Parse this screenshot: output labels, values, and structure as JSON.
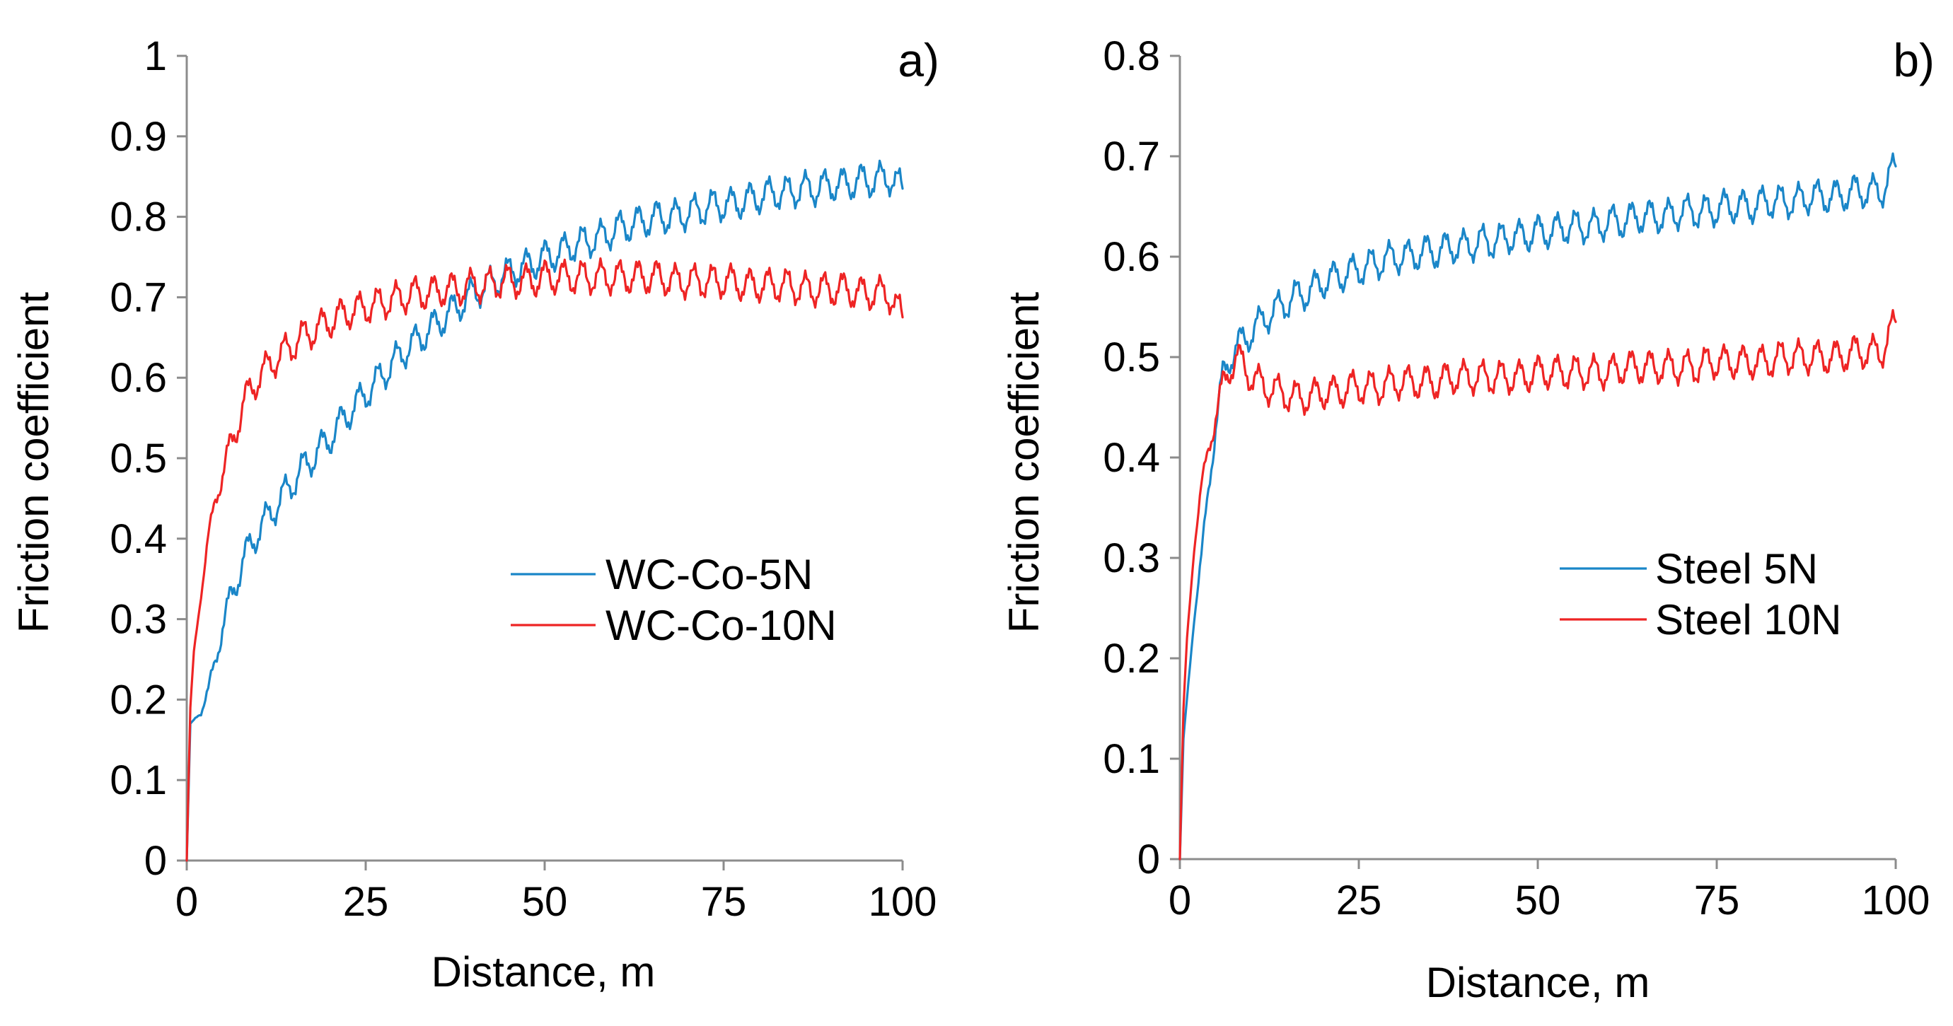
{
  "colors": {
    "series_blue": "#1a86c8",
    "series_red": "#ee2424",
    "axis": "#8c8c8c"
  },
  "chart_data": [
    {
      "type": "line",
      "panel_label": "a)",
      "xlabel": "Distance, m",
      "ylabel": "Friction coefficient",
      "xlim": [
        0,
        100
      ],
      "ylim": [
        0,
        1
      ],
      "x_ticks": [
        0,
        25,
        50,
        75,
        100
      ],
      "x_tick_labels": [
        "0",
        "25",
        "50",
        "75",
        "100"
      ],
      "y_ticks": [
        0,
        0.1,
        0.2,
        0.3,
        0.4,
        0.5,
        0.6,
        0.7,
        0.8,
        0.9,
        1
      ],
      "y_tick_labels": [
        "0",
        "0.1",
        "0.2",
        "0.3",
        "0.4",
        "0.5",
        "0.6",
        "0.7",
        "0.8",
        "0.9",
        "1"
      ],
      "grid": false,
      "legend_position": "center-right",
      "series": [
        {
          "name": "WC-Co-5N",
          "color": "#1a86c8",
          "x": [
            0,
            0.5,
            1,
            2,
            3,
            4,
            5,
            6,
            7,
            8,
            10,
            12,
            14,
            16,
            18,
            20,
            22,
            24,
            26,
            28,
            30,
            32,
            34,
            36,
            38,
            40,
            42,
            44,
            46,
            48,
            50,
            52,
            54,
            56,
            58,
            60,
            62,
            64,
            66,
            68,
            70,
            72,
            74,
            76,
            78,
            80,
            82,
            84,
            86,
            88,
            90,
            92,
            94,
            96,
            98,
            100
          ],
          "y": [
            0,
            0.17,
            0.175,
            0.185,
            0.21,
            0.25,
            0.29,
            0.32,
            0.35,
            0.375,
            0.41,
            0.435,
            0.46,
            0.485,
            0.505,
            0.525,
            0.55,
            0.57,
            0.59,
            0.61,
            0.63,
            0.645,
            0.66,
            0.675,
            0.69,
            0.705,
            0.715,
            0.725,
            0.735,
            0.74,
            0.75,
            0.755,
            0.765,
            0.77,
            0.775,
            0.785,
            0.79,
            0.795,
            0.8,
            0.8,
            0.805,
            0.81,
            0.815,
            0.815,
            0.82,
            0.825,
            0.83,
            0.83,
            0.835,
            0.835,
            0.84,
            0.84,
            0.845,
            0.845,
            0.85,
            0.835
          ]
        },
        {
          "name": "WC-Co-10N",
          "color": "#ee2424",
          "x": [
            0,
            0.5,
            1,
            2,
            3,
            4,
            5,
            6,
            7,
            8,
            10,
            12,
            14,
            16,
            18,
            20,
            22,
            24,
            26,
            28,
            30,
            32,
            34,
            36,
            38,
            40,
            42,
            44,
            46,
            48,
            50,
            52,
            54,
            56,
            58,
            60,
            62,
            64,
            66,
            68,
            70,
            72,
            74,
            76,
            78,
            80,
            82,
            84,
            86,
            88,
            90,
            92,
            94,
            96,
            98,
            100
          ],
          "y": [
            0,
            0.19,
            0.26,
            0.33,
            0.4,
            0.45,
            0.48,
            0.51,
            0.54,
            0.57,
            0.6,
            0.62,
            0.635,
            0.65,
            0.66,
            0.67,
            0.68,
            0.685,
            0.69,
            0.695,
            0.7,
            0.705,
            0.705,
            0.71,
            0.71,
            0.715,
            0.715,
            0.72,
            0.72,
            0.72,
            0.725,
            0.725,
            0.725,
            0.725,
            0.725,
            0.725,
            0.725,
            0.725,
            0.725,
            0.72,
            0.72,
            0.72,
            0.72,
            0.72,
            0.715,
            0.715,
            0.715,
            0.715,
            0.71,
            0.71,
            0.71,
            0.71,
            0.705,
            0.705,
            0.705,
            0.675
          ]
        }
      ]
    },
    {
      "type": "line",
      "panel_label": "b)",
      "xlabel": "Distance, m",
      "ylabel": "Friction coefficient",
      "xlim": [
        0,
        100
      ],
      "ylim": [
        0,
        0.8
      ],
      "x_ticks": [
        0,
        25,
        50,
        75,
        100
      ],
      "x_tick_labels": [
        "0",
        "25",
        "50",
        "75",
        "100"
      ],
      "y_ticks": [
        0,
        0.1,
        0.2,
        0.3,
        0.4,
        0.5,
        0.6,
        0.7,
        0.8
      ],
      "y_tick_labels": [
        "0",
        "0.1",
        "0.2",
        "0.3",
        "0.4",
        "0.5",
        "0.6",
        "0.7",
        "0.8"
      ],
      "grid": false,
      "legend_position": "center-right",
      "series": [
        {
          "name": "Steel 5N",
          "color": "#1a86c8",
          "x": [
            0,
            0.5,
            1,
            2,
            3,
            4,
            5,
            6,
            7,
            8,
            10,
            12,
            14,
            16,
            18,
            20,
            22,
            24,
            26,
            28,
            30,
            32,
            34,
            36,
            38,
            40,
            42,
            44,
            46,
            48,
            50,
            52,
            54,
            56,
            58,
            60,
            62,
            64,
            66,
            68,
            70,
            72,
            74,
            76,
            78,
            80,
            82,
            84,
            86,
            88,
            90,
            92,
            94,
            96,
            98,
            100
          ],
          "y": [
            0,
            0.12,
            0.16,
            0.24,
            0.3,
            0.37,
            0.43,
            0.48,
            0.5,
            0.51,
            0.525,
            0.54,
            0.55,
            0.56,
            0.565,
            0.575,
            0.58,
            0.585,
            0.59,
            0.595,
            0.6,
            0.6,
            0.605,
            0.605,
            0.61,
            0.61,
            0.615,
            0.615,
            0.62,
            0.62,
            0.625,
            0.625,
            0.63,
            0.63,
            0.63,
            0.635,
            0.635,
            0.64,
            0.64,
            0.64,
            0.645,
            0.645,
            0.645,
            0.65,
            0.65,
            0.65,
            0.655,
            0.655,
            0.655,
            0.66,
            0.66,
            0.66,
            0.665,
            0.665,
            0.665,
            0.69
          ]
        },
        {
          "name": "Steel 10N",
          "color": "#ee2424",
          "x": [
            0,
            0.5,
            1,
            2,
            3,
            4,
            5,
            6,
            7,
            8,
            10,
            12,
            14,
            16,
            18,
            20,
            22,
            24,
            26,
            28,
            30,
            32,
            34,
            36,
            38,
            40,
            42,
            44,
            46,
            48,
            50,
            52,
            54,
            56,
            58,
            60,
            62,
            64,
            66,
            68,
            70,
            72,
            74,
            76,
            78,
            80,
            82,
            84,
            86,
            88,
            90,
            92,
            94,
            96,
            98,
            100
          ],
          "y": [
            0,
            0.15,
            0.22,
            0.31,
            0.37,
            0.41,
            0.44,
            0.47,
            0.49,
            0.5,
            0.48,
            0.47,
            0.465,
            0.46,
            0.46,
            0.465,
            0.465,
            0.47,
            0.47,
            0.47,
            0.475,
            0.475,
            0.475,
            0.475,
            0.48,
            0.48,
            0.48,
            0.48,
            0.48,
            0.48,
            0.485,
            0.485,
            0.485,
            0.485,
            0.485,
            0.485,
            0.49,
            0.49,
            0.49,
            0.49,
            0.49,
            0.49,
            0.495,
            0.495,
            0.495,
            0.495,
            0.495,
            0.5,
            0.5,
            0.5,
            0.5,
            0.5,
            0.505,
            0.505,
            0.505,
            0.535
          ]
        }
      ]
    }
  ]
}
